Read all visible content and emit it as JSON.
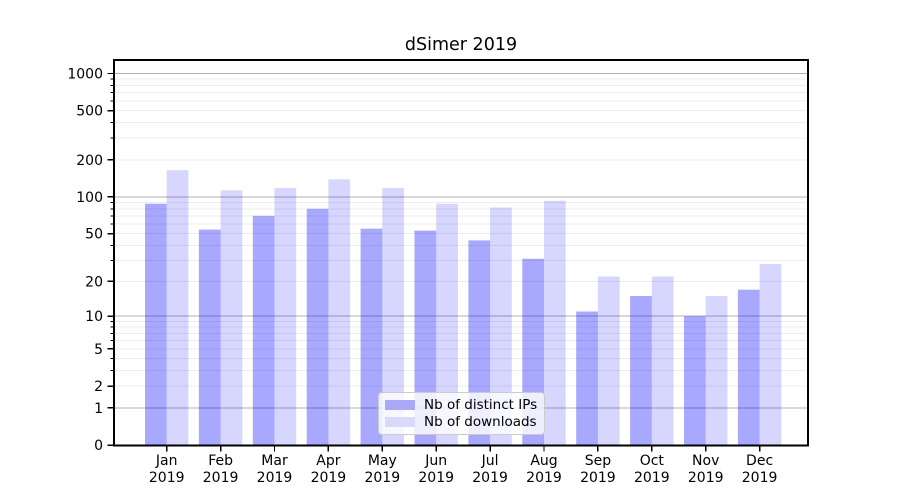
{
  "chart_data": {
    "type": "bar",
    "title": "dSimer 2019",
    "categories": [
      "Jan",
      "Feb",
      "Mar",
      "Apr",
      "May",
      "Jun",
      "Jul",
      "Aug",
      "Sep",
      "Oct",
      "Nov",
      "Dec"
    ],
    "category_year": "2019",
    "series": [
      {
        "key": "distinct-ips",
        "name": "Nb of distinct IPs",
        "color": "#0000ff",
        "opacity": 0.34,
        "solid_hex": "#a9a9f8",
        "values": [
          88,
          54,
          70,
          80,
          55,
          53,
          44,
          31,
          11,
          15,
          10,
          17
        ]
      },
      {
        "key": "downloads",
        "name": "Nb of downloads",
        "color": "#0000ff",
        "opacity": 0.16,
        "solid_hex": "#d9d9f9",
        "values": [
          165,
          113,
          118,
          139,
          118,
          88,
          82,
          93,
          22,
          22,
          15,
          28
        ]
      }
    ],
    "yscale": "log1p",
    "ylim": [
      0,
      1287
    ],
    "yticks": [
      0,
      1,
      2,
      5,
      10,
      20,
      50,
      100,
      200,
      500,
      1000
    ],
    "minor_yticks": [
      2,
      3,
      4,
      5,
      6,
      7,
      8,
      9,
      20,
      30,
      40,
      50,
      60,
      70,
      80,
      90,
      200,
      300,
      400,
      500,
      600,
      700,
      800,
      900
    ],
    "major_gridlines": [
      1,
      10,
      100,
      1000
    ],
    "grid": true,
    "legend_position": "lower-center",
    "colors": {
      "major_grid": "#b0b0b0",
      "minor_grid": "#dcdcdc",
      "axis": "#000000",
      "text": "#000000",
      "background": "#ffffff"
    }
  }
}
